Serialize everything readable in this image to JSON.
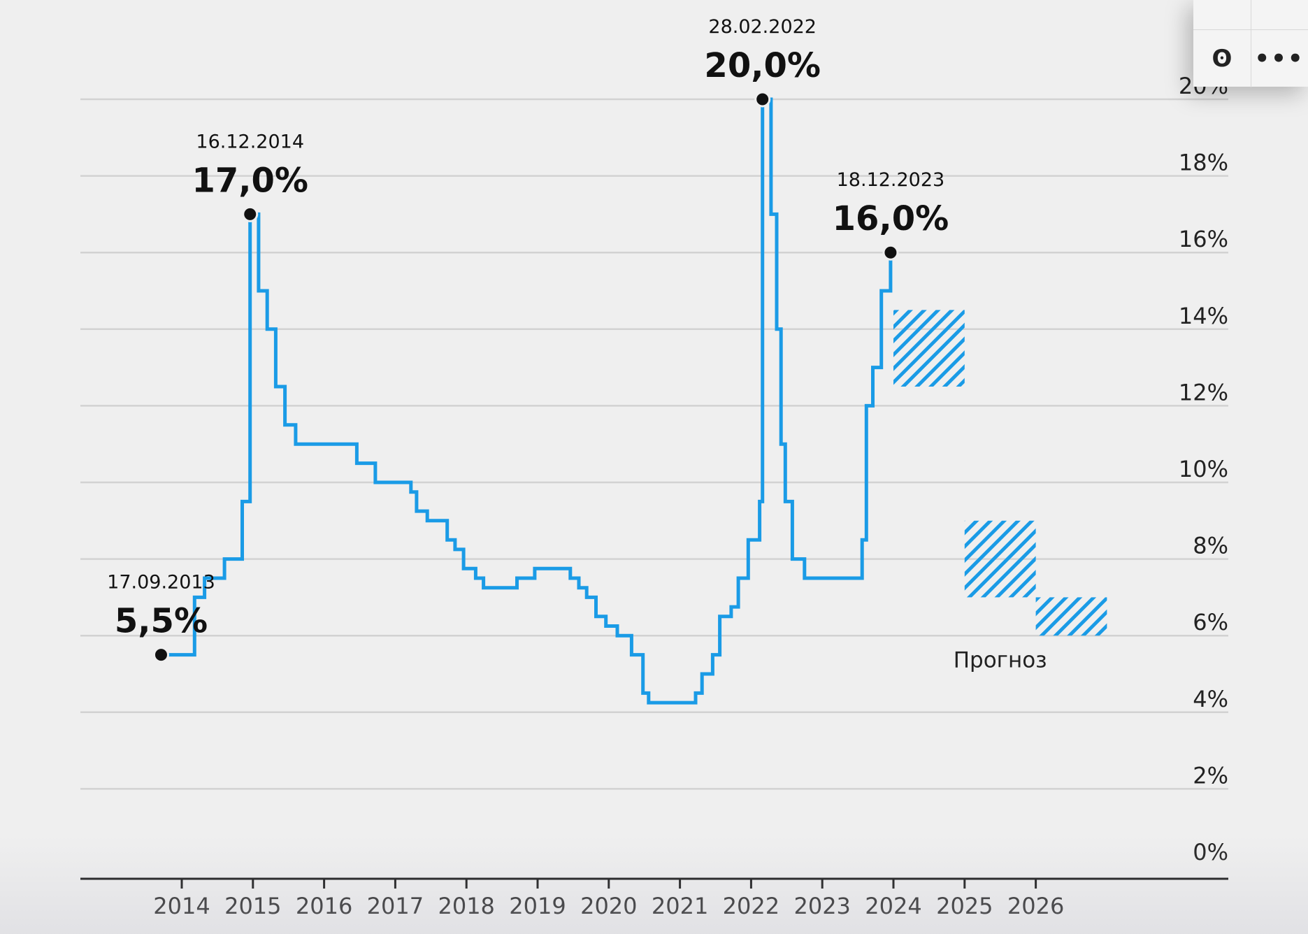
{
  "chart_data": {
    "type": "line",
    "step": true,
    "ylim": [
      0,
      20
    ],
    "yticks": [
      "0%",
      "2%",
      "4%",
      "6%",
      "8%",
      "10%",
      "12%",
      "14%",
      "16%",
      "18%",
      "20%"
    ],
    "yaxis_position": "right",
    "xticks": [
      "2014",
      "2015",
      "2016",
      "2017",
      "2018",
      "2019",
      "2020",
      "2021",
      "2022",
      "2023",
      "2024",
      "2025",
      "2026"
    ],
    "grid": true,
    "line_color": "#1a9be6",
    "series": [
      {
        "steps": [
          [
            2013.71,
            5.5
          ],
          [
            2014.18,
            7.0
          ],
          [
            2014.32,
            7.5
          ],
          [
            2014.6,
            8.0
          ],
          [
            2014.85,
            9.5
          ],
          [
            2014.96,
            17.0
          ],
          [
            2015.08,
            15.0
          ],
          [
            2015.2,
            14.0
          ],
          [
            2015.32,
            12.5
          ],
          [
            2015.45,
            11.5
          ],
          [
            2015.6,
            11.0
          ],
          [
            2016.46,
            10.5
          ],
          [
            2016.72,
            10.0
          ],
          [
            2017.22,
            9.75
          ],
          [
            2017.3,
            9.25
          ],
          [
            2017.45,
            9.0
          ],
          [
            2017.73,
            8.5
          ],
          [
            2017.84,
            8.25
          ],
          [
            2017.96,
            7.75
          ],
          [
            2018.13,
            7.5
          ],
          [
            2018.24,
            7.25
          ],
          [
            2018.71,
            7.5
          ],
          [
            2018.96,
            7.75
          ],
          [
            2019.46,
            7.5
          ],
          [
            2019.58,
            7.25
          ],
          [
            2019.69,
            7.0
          ],
          [
            2019.82,
            6.5
          ],
          [
            2019.96,
            6.25
          ],
          [
            2020.12,
            6.0
          ],
          [
            2020.32,
            5.5
          ],
          [
            2020.48,
            4.5
          ],
          [
            2020.56,
            4.25
          ],
          [
            2021.22,
            4.5
          ],
          [
            2021.31,
            5.0
          ],
          [
            2021.46,
            5.5
          ],
          [
            2021.56,
            6.5
          ],
          [
            2021.72,
            6.75
          ],
          [
            2021.82,
            7.5
          ],
          [
            2021.96,
            8.5
          ],
          [
            2022.12,
            9.5
          ],
          [
            2022.16,
            20.0
          ],
          [
            2022.28,
            17.0
          ],
          [
            2022.36,
            14.0
          ],
          [
            2022.42,
            11.0
          ],
          [
            2022.48,
            9.5
          ],
          [
            2022.58,
            8.0
          ],
          [
            2022.75,
            7.5
          ],
          [
            2023.56,
            8.5
          ],
          [
            2023.62,
            12.0
          ],
          [
            2023.71,
            13.0
          ],
          [
            2023.83,
            15.0
          ],
          [
            2023.96,
            16.0
          ],
          [
            2023.99,
            16.0
          ]
        ]
      }
    ],
    "forecast": {
      "label": "Прогноз",
      "ranges": [
        {
          "x0": 2024.0,
          "x1": 2025.0,
          "ymin": 12.5,
          "ymax": 14.5
        },
        {
          "x0": 2025.0,
          "x1": 2026.0,
          "ymin": 7.0,
          "ymax": 9.0
        },
        {
          "x0": 2026.0,
          "x1": 2027.0,
          "ymin": 6.0,
          "ymax": 7.0
        }
      ]
    },
    "annotations": [
      {
        "x": 2013.71,
        "y": 5.5,
        "date": "17.09.2013",
        "value": "5,5%"
      },
      {
        "x": 2014.96,
        "y": 17.0,
        "date": "16.12.2014",
        "value": "17,0%"
      },
      {
        "x": 2022.16,
        "y": 20.0,
        "date": "28.02.2022",
        "value": "20,0%"
      },
      {
        "x": 2023.96,
        "y": 16.0,
        "date": "18.12.2023",
        "value": "16,0%"
      }
    ]
  },
  "share": {
    "ok_icon": "odnoklassniki-icon",
    "more_icon": "more-icon",
    "ok_glyph": "ʘ",
    "more_glyph": "•••"
  }
}
